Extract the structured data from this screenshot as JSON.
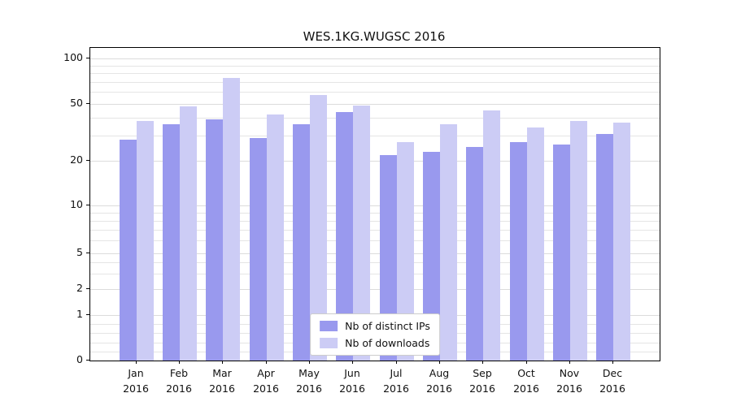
{
  "title": "WES.1KG.WUGSC 2016",
  "chart_data": {
    "type": "bar",
    "title": "WES.1KG.WUGSC 2016",
    "categories": [
      "Jan",
      "Feb",
      "Mar",
      "Apr",
      "May",
      "Jun",
      "Jul",
      "Aug",
      "Sep",
      "Oct",
      "Nov",
      "Dec"
    ],
    "category_year": "2016",
    "series": [
      {
        "name": "Nb of distinct IPs",
        "color": "#9999ee",
        "values": [
          28,
          36,
          39,
          29,
          36,
          44,
          22,
          23,
          25,
          27,
          26,
          31
        ]
      },
      {
        "name": "Nb of downloads",
        "color": "#ccccf5",
        "values": [
          38,
          48,
          74,
          42,
          57,
          49,
          27,
          36,
          45,
          34,
          38,
          37
        ]
      }
    ],
    "yscale": "symlog",
    "yticks": [
      0,
      1,
      2,
      5,
      10,
      20,
      50,
      100
    ],
    "ytick_labels": [
      "0",
      "1",
      "2",
      "5",
      "10",
      "20",
      "50",
      "100"
    ],
    "minor_gridlines": [
      0.2,
      0.4,
      0.6,
      0.8,
      3,
      4,
      6,
      7,
      8,
      9,
      30,
      40,
      60,
      70,
      80,
      90
    ],
    "xlabel": "",
    "ylabel": "",
    "grid": "horizontal",
    "legend_position": "lower center"
  }
}
